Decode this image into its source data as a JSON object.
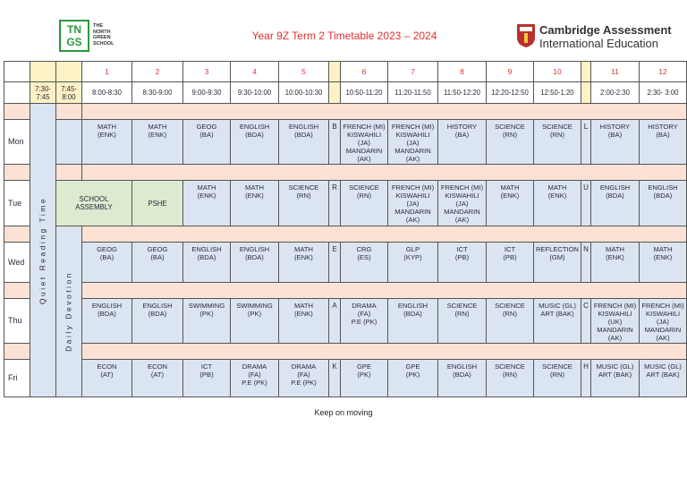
{
  "header": {
    "logo": "TNGS",
    "school_name": [
      "THE",
      "NORTH",
      "GREEN",
      "SCHOOL"
    ],
    "title": "Year 9Z Term 2 Timetable 2023 – 2024",
    "board": [
      "Cambridge Assessment",
      "International Education"
    ]
  },
  "periods": [
    "1",
    "2",
    "3",
    "4",
    "5",
    "6",
    "7",
    "8",
    "9",
    "10",
    "11",
    "12"
  ],
  "early_times": [
    "7:30-7:45",
    "7:45-8:00"
  ],
  "times": [
    "8:00-8:30",
    "8:30-9:00",
    "9:00-9:30",
    "9:30-10:00",
    "10:00-10:30",
    "10:50-11:20",
    "11:20-11:50",
    "11:50-12:20",
    "12:20-12:50",
    "12:50-1:20",
    "2:00-2:30",
    "2:30- 3:00"
  ],
  "quiet_time": "Quiet Reading Time",
  "devotion": "Daily Devotion",
  "days": [
    {
      "name": "Mon",
      "break": "B",
      "lunch": "L",
      "cells": [
        [
          "MATH",
          "(ENK)"
        ],
        [
          "MATH",
          "(ENK)"
        ],
        [
          "GEOG",
          "(BA)"
        ],
        [
          "ENGLISH",
          "(BDA)"
        ],
        [
          "ENGLISH",
          "(BDA)"
        ],
        [
          "FRENCH (MI)",
          "KISWAHILI",
          "(JA)",
          "MANDARIN",
          "(AK)"
        ],
        [
          "FRENCH (MI)",
          "KISWAHILI",
          "(JA)",
          "MANDARIN",
          "(AK)"
        ],
        [
          "HISTORY",
          "(BA)"
        ],
        [
          "SCIENCE",
          "(RN)"
        ],
        [
          "SCIENCE",
          "(RN)"
        ],
        [
          "HISTORY",
          "(BA)"
        ],
        [
          "HISTORY",
          "(BA)"
        ]
      ]
    },
    {
      "name": "Tue",
      "break": "R",
      "lunch": "U",
      "cells": [
        [
          "SCHOOL",
          "ASSEMBLY"
        ],
        [
          "PSHE"
        ],
        [
          "MATH",
          "(ENK)"
        ],
        [
          "MATH",
          "(ENK)"
        ],
        [
          "SCIENCE",
          "(RN)"
        ],
        [
          "SCIENCE",
          "(RN)"
        ],
        [
          "FRENCH (MI)",
          "KISWAHILI",
          "(JA)",
          "MANDARIN",
          "(AK)"
        ],
        [
          "FRENCH (MI)",
          "KISWAHILI",
          "(JA)",
          "MANDARIN",
          "(AK)"
        ],
        [
          "MATH",
          "(ENK)"
        ],
        [
          "MATH",
          "(ENK)"
        ],
        [
          "ENGLISH",
          "(BDA)"
        ],
        [
          "ENGLISH",
          "(BDA)"
        ]
      ]
    },
    {
      "name": "Wed",
      "break": "E",
      "lunch": "N",
      "cells": [
        [
          "GEOG",
          "(BA)"
        ],
        [
          "GEOG",
          "(BA)"
        ],
        [
          "ENGLISH",
          "(BDA)"
        ],
        [
          "ENGLISH",
          "(BDA)"
        ],
        [
          "MATH",
          "(ENK)"
        ],
        [
          "CRG",
          "(ES)"
        ],
        [
          "GLP",
          "(KYP)"
        ],
        [
          "ICT",
          "(PB)"
        ],
        [
          "ICT",
          "(PB)"
        ],
        [
          "REFLECTION",
          "(GM)"
        ],
        [
          "MATH",
          "(ENK)"
        ],
        [
          "MATH",
          "(ENK)"
        ]
      ]
    },
    {
      "name": "Thu",
      "break": "A",
      "lunch": "C",
      "cells": [
        [
          "ENGLISH",
          "(BDA)"
        ],
        [
          "ENGLISH",
          "(BDA)"
        ],
        [
          "SWIMMING",
          "(PK)"
        ],
        [
          "SWIMMING",
          "(PK)"
        ],
        [
          "MATH",
          "(ENK)"
        ],
        [
          "DRAMA",
          "(FA)",
          "P.E (PK)"
        ],
        [
          "ENGLISH",
          "(BDA)"
        ],
        [
          "SCIENCE",
          "(RN)"
        ],
        [
          "SCIENCE",
          "(RN)"
        ],
        [
          "MUSIC (GL)",
          "ART (BAK)"
        ],
        [
          "FRENCH (MI)",
          "KISWAHILI",
          "(UK)",
          "MANDARIN",
          "(AK)"
        ],
        [
          "FRENCH (MI)",
          "KISWAHILI",
          "(JA)",
          "MANDARIN",
          "(AK)"
        ]
      ]
    },
    {
      "name": "Fri",
      "break": "K",
      "lunch": "H",
      "cells": [
        [
          "ECON",
          "(AT)"
        ],
        [
          "ECON",
          "(AT)"
        ],
        [
          "ICT",
          "(PB)"
        ],
        [
          "DRAMA",
          "(FA)",
          "P.E (PK)"
        ],
        [
          "DRAMA",
          "(FA)",
          "P.E (PK)"
        ],
        [
          "GPE",
          "(PK)"
        ],
        [
          "GPE",
          "(PK)"
        ],
        [
          "ENGLISH",
          "(BDA)"
        ],
        [
          "SCIENCE",
          "(RN)"
        ],
        [
          "SCIENCE",
          "(RN)"
        ],
        [
          "MUSIC (GL)",
          "ART (BAK)"
        ],
        [
          "MUSIC (GL)",
          "ART (BAK)"
        ]
      ]
    }
  ],
  "footer": "Keep on moving"
}
